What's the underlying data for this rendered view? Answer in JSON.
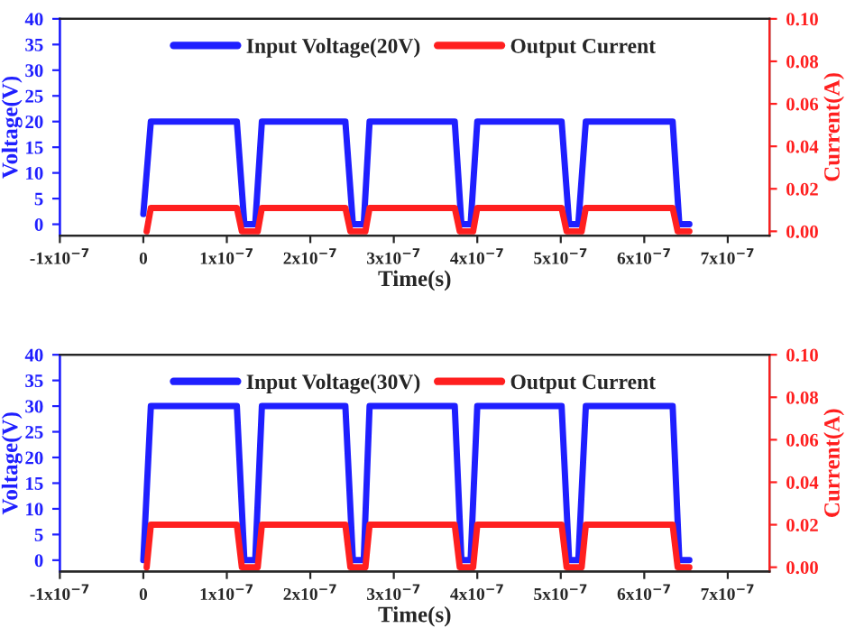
{
  "chart_data": [
    {
      "type": "line",
      "xlabel": "Time(s)",
      "ylabel": "Voltage(V)",
      "y2label": "Current(A)",
      "xlim": [
        -1e-07,
        7.5e-07
      ],
      "xticks": [
        {
          "value": -1e-07,
          "label": "-1x10$^{−7}$"
        },
        0,
        {
          "value": 1e-07,
          "label": "1x10$^{−7}$"
        },
        {
          "value": 2e-07,
          "label": "2x10$^{−7}$"
        },
        {
          "value": 3e-07,
          "label": "3x10$^{−7}$"
        },
        {
          "value": 4e-07,
          "label": "4x10$^{−7}$"
        },
        {
          "value": 5e-07,
          "label": "5x10$^{−7}$"
        },
        {
          "value": 6e-07,
          "label": "6x10$^{−7}$"
        },
        {
          "value": 7e-07,
          "label": "7x10$^{−7}$"
        }
      ],
      "ylim": [
        -2.2,
        40
      ],
      "yticks": [
        0,
        5,
        10,
        15,
        20,
        25,
        30,
        35,
        40
      ],
      "y2lim": [
        -0.002,
        0.1
      ],
      "y2ticks": [
        {
          "value": 0,
          "label": "0.00"
        },
        {
          "value": 0.02,
          "label": "0.02"
        },
        {
          "value": 0.04,
          "label": "0.04"
        },
        {
          "value": 0.06,
          "label": "0.06"
        },
        {
          "value": 0.08,
          "label": "0.08"
        },
        {
          "value": 0.1,
          "label": "0.10"
        }
      ],
      "legend": "top",
      "grid": false,
      "series": [
        {
          "name": "Input Voltage(20V)",
          "color": "#1f1fff",
          "x": [
            0,
            9e-09,
            1.12e-07,
            1.21e-07,
            1.34e-07,
            1.42e-07,
            2.42e-07,
            2.51e-07,
            2.64e-07,
            2.71e-07,
            3.73e-07,
            3.81e-07,
            3.92e-07,
            4e-07,
            5.01e-07,
            5.1e-07,
            5.21e-07,
            5.3e-07,
            6.34e-07,
            6.42e-07,
            6.54e-07
          ],
          "values": [
            2,
            20,
            20,
            0,
            0,
            20,
            20,
            0,
            0,
            20,
            20,
            0,
            0,
            20,
            20,
            0,
            0,
            20,
            20,
            0,
            0
          ]
        },
        {
          "name": "Output Current",
          "color": "#ff1f1f",
          "axis": "y2",
          "x": [
            4e-09,
            9e-09,
            1.12e-07,
            1.18e-07,
            1.37e-07,
            1.42e-07,
            2.42e-07,
            2.48e-07,
            2.66e-07,
            2.71e-07,
            3.73e-07,
            3.79e-07,
            3.95e-07,
            4e-07,
            5.01e-07,
            5.07e-07,
            5.25e-07,
            5.3e-07,
            6.34e-07,
            6.4e-07,
            6.54e-07
          ],
          "values": [
            0,
            0.011,
            0.011,
            0,
            0,
            0.011,
            0.011,
            0,
            0,
            0.011,
            0.011,
            0,
            0,
            0.011,
            0.011,
            0,
            0,
            0.011,
            0.011,
            0,
            0
          ]
        }
      ]
    },
    {
      "type": "line",
      "xlabel": "Time(s)",
      "ylabel": "Voltage(V)",
      "y2label": "Current(A)",
      "xlim": [
        -1e-07,
        7.5e-07
      ],
      "xticks": [
        {
          "value": -1e-07,
          "label": "-1x10$^{−7}$"
        },
        0,
        {
          "value": 1e-07,
          "label": "1x10$^{−7}$"
        },
        {
          "value": 2e-07,
          "label": "2x10$^{−7}$"
        },
        {
          "value": 3e-07,
          "label": "3x10$^{−7}$"
        },
        {
          "value": 4e-07,
          "label": "4x10$^{−7}$"
        },
        {
          "value": 5e-07,
          "label": "5x10$^{−7}$"
        },
        {
          "value": 6e-07,
          "label": "6x10$^{−7}$"
        },
        {
          "value": 7e-07,
          "label": "7x10$^{−7}$"
        }
      ],
      "ylim": [
        -2.2,
        40
      ],
      "yticks": [
        0,
        5,
        10,
        15,
        20,
        25,
        30,
        35,
        40
      ],
      "y2lim": [
        -0.002,
        0.1
      ],
      "y2ticks": [
        {
          "value": 0,
          "label": "0.00"
        },
        {
          "value": 0.02,
          "label": "0.02"
        },
        {
          "value": 0.04,
          "label": "0.04"
        },
        {
          "value": 0.06,
          "label": "0.06"
        },
        {
          "value": 0.08,
          "label": "0.08"
        },
        {
          "value": 0.1,
          "label": "0.10"
        }
      ],
      "legend": "top",
      "grid": false,
      "series": [
        {
          "name": "Input Voltage(30V)",
          "color": "#1f1fff",
          "x": [
            0,
            9e-09,
            1.12e-07,
            1.21e-07,
            1.34e-07,
            1.42e-07,
            2.42e-07,
            2.51e-07,
            2.64e-07,
            2.71e-07,
            3.73e-07,
            3.81e-07,
            3.92e-07,
            4e-07,
            5.01e-07,
            5.1e-07,
            5.21e-07,
            5.3e-07,
            6.34e-07,
            6.42e-07,
            6.54e-07
          ],
          "values": [
            0,
            30,
            30,
            0,
            0,
            30,
            30,
            0,
            0,
            30,
            30,
            0,
            0,
            30,
            30,
            0,
            0,
            30,
            30,
            0,
            0
          ]
        },
        {
          "name": "Output Current",
          "color": "#ff1f1f",
          "axis": "y2",
          "x": [
            4e-09,
            9e-09,
            1.12e-07,
            1.18e-07,
            1.37e-07,
            1.42e-07,
            2.42e-07,
            2.48e-07,
            2.66e-07,
            2.71e-07,
            3.73e-07,
            3.79e-07,
            3.95e-07,
            4e-07,
            5.01e-07,
            5.07e-07,
            5.25e-07,
            5.3e-07,
            6.34e-07,
            6.4e-07,
            6.54e-07
          ],
          "values": [
            0,
            0.02,
            0.02,
            0,
            0,
            0.02,
            0.02,
            0,
            0,
            0.02,
            0.02,
            0,
            0,
            0.02,
            0.02,
            0,
            0,
            0.02,
            0.02,
            0,
            0
          ]
        }
      ]
    }
  ]
}
